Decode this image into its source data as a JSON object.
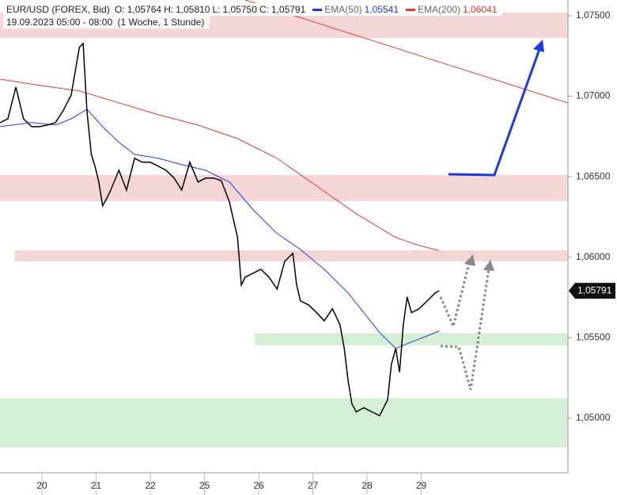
{
  "chart_data": {
    "type": "line",
    "header": {
      "date": "19.09.2023 05:00 - 08:00",
      "period": "(1 Woche, 1 Stunde)",
      "ohlc": [
        {
          "label": "O:",
          "value": "1,05764"
        },
        {
          "label": "H:",
          "value": "1,05810"
        },
        {
          "label": "L:",
          "value": "1,05750"
        },
        {
          "label": "C:",
          "value": "1,05791"
        }
      ]
    },
    "xlim": [
      -0.774,
      9.708
    ],
    "xticks": [
      {
        "value": 0,
        "label": "20"
      },
      {
        "value": 1,
        "label": "21"
      },
      {
        "value": 2,
        "label": "22"
      },
      {
        "value": 3,
        "label": "25"
      },
      {
        "value": 4,
        "label": "26"
      },
      {
        "value": 5,
        "label": "27"
      },
      {
        "value": 6,
        "label": "28"
      },
      {
        "value": 7,
        "label": "29"
      }
    ],
    "ylim": [
      1.0466,
      1.07598
    ],
    "yticks": [
      {
        "value": 1.05,
        "label": "1,05000"
      },
      {
        "value": 1.055,
        "label": "1,05500"
      },
      {
        "value": 1.06,
        "label": "1,06000"
      },
      {
        "value": 1.065,
        "label": "1,06500"
      },
      {
        "value": 1.07,
        "label": "1,07000"
      },
      {
        "value": 1.075,
        "label": "1,07500"
      }
    ],
    "last_price": {
      "value": 1.05791,
      "label": "1,05791"
    },
    "zones": [
      {
        "from": 1.07362,
        "to": 1.0752,
        "color": "#f4d6d6",
        "xstart": -0.774
      },
      {
        "from": 1.06348,
        "to": 1.06511,
        "color": "#f4d6d6",
        "xstart": -0.774
      },
      {
        "from": 1.05974,
        "to": 1.06043,
        "color": "#f4d6d6",
        "xstart": -0.5
      },
      {
        "from": 1.05453,
        "to": 1.05527,
        "color": "#d5efd5",
        "xstart": 3.93
      },
      {
        "from": 1.04818,
        "to": 1.05123,
        "color": "#d5efd5",
        "xstart": -0.774
      }
    ],
    "series": [
      {
        "name": "EUR/USD (FOREX, Bid)",
        "color": "#000000",
        "x": [
          -0.77,
          -0.63,
          -0.48,
          -0.34,
          -0.19,
          -0.04,
          0.1,
          0.25,
          0.39,
          0.54,
          0.69,
          0.76,
          0.83,
          0.91,
          0.98,
          1.05,
          1.12,
          1.2,
          1.27,
          1.42,
          1.56,
          1.71,
          1.85,
          2.0,
          2.15,
          2.29,
          2.44,
          2.58,
          2.73,
          2.88,
          3.02,
          3.17,
          3.31,
          3.46,
          3.61,
          3.68,
          3.75,
          3.9,
          4.04,
          4.19,
          4.34,
          4.48,
          4.63,
          4.7,
          4.77,
          4.92,
          5.07,
          5.21,
          5.36,
          5.5,
          5.58,
          5.65,
          5.72,
          5.8,
          5.94,
          6.09,
          6.23,
          6.38,
          6.45,
          6.53,
          6.6,
          6.67,
          6.74,
          6.82,
          6.96,
          7.11,
          7.26,
          7.33
        ],
        "values": [
          1.06836,
          1.0686,
          1.07057,
          1.0686,
          1.06811,
          1.06811,
          1.06821,
          1.06836,
          1.06909,
          1.07008,
          1.07303,
          1.07328,
          1.06909,
          1.06639,
          1.06565,
          1.06467,
          1.06319,
          1.06368,
          1.06417,
          1.0654,
          1.06417,
          1.06614,
          1.0659,
          1.0659,
          1.06565,
          1.0654,
          1.06491,
          1.06417,
          1.0659,
          1.06467,
          1.06491,
          1.06491,
          1.06476,
          1.06344,
          1.06122,
          1.05827,
          1.05876,
          1.05901,
          1.05925,
          1.05876,
          1.05802,
          1.05974,
          1.06024,
          1.05827,
          1.05728,
          1.05704,
          1.05655,
          1.05605,
          1.05679,
          1.05581,
          1.05433,
          1.05236,
          1.05089,
          1.05039,
          1.05064,
          1.05039,
          1.05015,
          1.05113,
          1.05335,
          1.05433,
          1.05285,
          1.05581,
          1.05753,
          1.05655,
          1.05679,
          1.05728,
          1.05778,
          1.05791
        ]
      },
      {
        "name": "EMA(50)",
        "color": "#1a3adf",
        "legend_value": "1,05541",
        "x": [
          -0.77,
          -0.19,
          0.25,
          0.54,
          0.83,
          1.12,
          1.42,
          1.71,
          2.15,
          2.58,
          3.02,
          3.46,
          3.9,
          4.34,
          4.77,
          5.21,
          5.65,
          5.94,
          6.23,
          6.53,
          6.82,
          7.11,
          7.33
        ],
        "values": [
          1.06811,
          1.06836,
          1.06821,
          1.0686,
          1.06919,
          1.06811,
          1.06713,
          1.06639,
          1.06614,
          1.06575,
          1.0654,
          1.06467,
          1.06294,
          1.06147,
          1.06048,
          1.05925,
          1.05778,
          1.05655,
          1.05532,
          1.05433,
          1.05473,
          1.05511,
          1.05541
        ]
      },
      {
        "name": "EMA(200)",
        "color": "#e53b2c",
        "legend_value": "1,06041",
        "x": [
          -0.77,
          -0.04,
          0.69,
          1.42,
          2.15,
          2.88,
          3.61,
          4.34,
          5.07,
          5.8,
          6.53,
          6.96,
          7.33
        ],
        "values": [
          1.07106,
          1.07067,
          1.07033,
          1.06959,
          1.06885,
          1.06821,
          1.06737,
          1.06614,
          1.06442,
          1.0627,
          1.06122,
          1.06073,
          1.06041
        ]
      }
    ]
  }
}
